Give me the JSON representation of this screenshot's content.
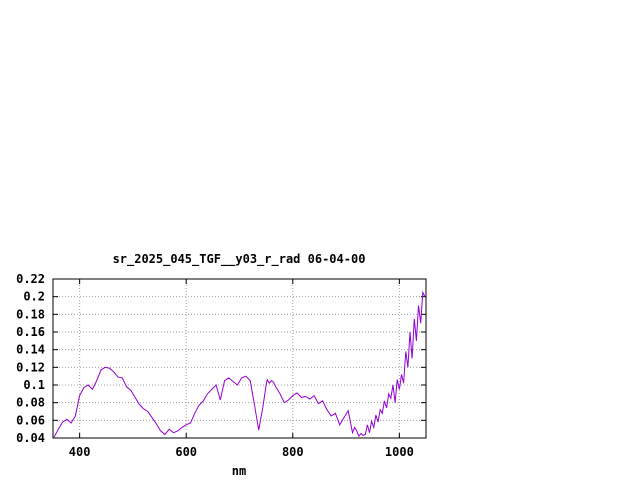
{
  "chart_data": {
    "type": "line",
    "title": "sr_2025_045_TGF__y03_r_rad 06-04-00",
    "xlabel": "nm",
    "ylabel": "",
    "xlim": [
      350,
      1050
    ],
    "ylim": [
      0.04,
      0.22
    ],
    "x_ticks": [
      400,
      600,
      800,
      1000
    ],
    "x_tick_labels": [
      "400",
      "600",
      "800",
      "1000"
    ],
    "y_ticks": [
      0.04,
      0.06,
      0.08,
      0.1,
      0.12,
      0.14,
      0.16,
      0.18,
      0.2,
      0.22
    ],
    "y_tick_labels": [
      "0.04",
      "0.06",
      "0.08",
      "0.1",
      "0.12",
      "0.14",
      "0.16",
      "0.18",
      "0.2",
      "0.22"
    ],
    "grid": true,
    "series": [
      {
        "color": "#9400d3",
        "x": [
          352,
          360,
          368,
          376,
          384,
          392,
          400,
          408,
          416,
          424,
          432,
          440,
          448,
          456,
          464,
          472,
          480,
          488,
          496,
          504,
          512,
          520,
          528,
          536,
          544,
          552,
          560,
          568,
          576,
          584,
          592,
          600,
          608,
          616,
          624,
          632,
          640,
          648,
          656,
          664,
          672,
          680,
          688,
          696,
          704,
          712,
          720,
          728,
          736,
          744,
          750,
          752,
          756,
          760,
          764,
          768,
          776,
          784,
          792,
          800,
          808,
          816,
          824,
          832,
          840,
          848,
          856,
          864,
          872,
          880,
          888,
          896,
          904,
          912,
          916,
          920,
          924,
          928,
          932,
          936,
          940,
          944,
          948,
          952,
          956,
          960,
          964,
          968,
          972,
          976,
          980,
          984,
          988,
          992,
          996,
          1000,
          1004,
          1008,
          1012,
          1016,
          1020,
          1024,
          1028,
          1032,
          1036,
          1040,
          1044,
          1048
        ],
        "y": [
          0.041,
          0.05,
          0.058,
          0.061,
          0.057,
          0.065,
          0.088,
          0.097,
          0.1,
          0.095,
          0.105,
          0.117,
          0.12,
          0.119,
          0.115,
          0.109,
          0.108,
          0.098,
          0.094,
          0.086,
          0.078,
          0.073,
          0.07,
          0.063,
          0.056,
          0.048,
          0.044,
          0.05,
          0.046,
          0.048,
          0.052,
          0.055,
          0.057,
          0.068,
          0.077,
          0.082,
          0.09,
          0.095,
          0.1,
          0.083,
          0.105,
          0.108,
          0.104,
          0.1,
          0.108,
          0.11,
          0.105,
          0.078,
          0.049,
          0.075,
          0.1,
          0.106,
          0.102,
          0.105,
          0.103,
          0.098,
          0.09,
          0.08,
          0.083,
          0.088,
          0.091,
          0.086,
          0.087,
          0.084,
          0.088,
          0.079,
          0.082,
          0.072,
          0.065,
          0.068,
          0.055,
          0.063,
          0.071,
          0.046,
          0.052,
          0.048,
          0.042,
          0.045,
          0.043,
          0.044,
          0.055,
          0.046,
          0.059,
          0.052,
          0.066,
          0.058,
          0.072,
          0.068,
          0.082,
          0.074,
          0.09,
          0.085,
          0.1,
          0.08,
          0.106,
          0.095,
          0.112,
          0.102,
          0.138,
          0.12,
          0.16,
          0.13,
          0.175,
          0.15,
          0.19,
          0.17,
          0.205,
          0.2
        ]
      }
    ]
  }
}
